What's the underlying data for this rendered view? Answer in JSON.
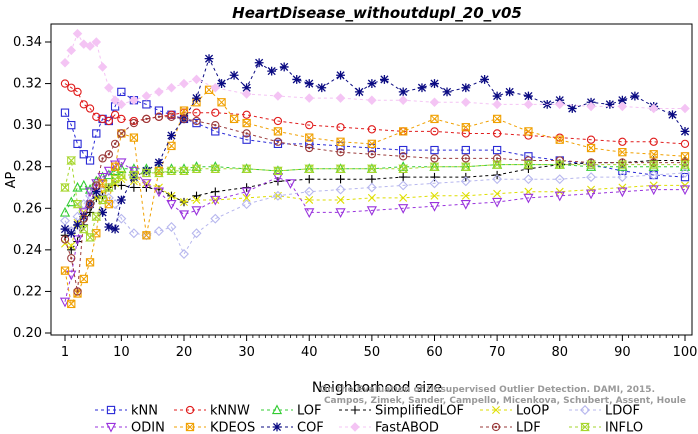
{
  "chart_data": {
    "type": "line",
    "title": "HeartDisease_withoutdupl_20_v05",
    "xlabel": "Neighborhood size",
    "ylabel": "AP",
    "xlim": [
      1,
      100
    ],
    "ylim": [
      0.2,
      0.345
    ],
    "xticks": [
      1,
      10,
      20,
      30,
      40,
      50,
      60,
      70,
      80,
      90,
      100
    ],
    "yticks": [
      0.2,
      0.22,
      0.24,
      0.26,
      0.28,
      0.3,
      0.32,
      0.34
    ],
    "ytick_labels": [
      "0.20",
      "0.22",
      "0.24",
      "0.26",
      "0.28",
      "0.30",
      "0.32",
      "0.34"
    ],
    "grid": false,
    "legend_position": "bottom",
    "credit_lines": [
      "Campos, Zimek, Sander, Campello, Micenkova, Schubert, Assent, Houle",
      "On the Evaluation of Unsupervised Outlier Detection. DAMI, 2015."
    ],
    "series": [
      {
        "name": "kNN",
        "color": "#2a2ad6",
        "marker": "square",
        "dashed": true,
        "x": [
          1,
          2,
          3,
          4,
          5,
          6,
          7,
          8,
          9,
          10,
          12,
          14,
          16,
          18,
          20,
          22,
          25,
          30,
          35,
          40,
          45,
          50,
          55,
          60,
          65,
          70,
          75,
          80,
          85,
          90,
          95,
          100
        ],
        "y": [
          0.306,
          0.3,
          0.291,
          0.286,
          0.283,
          0.296,
          0.303,
          0.302,
          0.309,
          0.316,
          0.312,
          0.31,
          0.307,
          0.305,
          0.303,
          0.301,
          0.297,
          0.293,
          0.291,
          0.291,
          0.29,
          0.289,
          0.288,
          0.288,
          0.288,
          0.288,
          0.285,
          0.283,
          0.281,
          0.278,
          0.276,
          0.275
        ]
      },
      {
        "name": "kNNW",
        "color": "#e01c1c",
        "marker": "circle",
        "dashed": true,
        "x": [
          1,
          2,
          3,
          4,
          5,
          6,
          7,
          8,
          9,
          10,
          12,
          14,
          16,
          18,
          20,
          22,
          25,
          30,
          35,
          40,
          45,
          50,
          55,
          60,
          65,
          70,
          75,
          80,
          85,
          90,
          95,
          100
        ],
        "y": [
          0.32,
          0.318,
          0.316,
          0.31,
          0.308,
          0.304,
          0.303,
          0.302,
          0.305,
          0.303,
          0.302,
          0.303,
          0.304,
          0.305,
          0.306,
          0.306,
          0.306,
          0.305,
          0.302,
          0.3,
          0.299,
          0.298,
          0.297,
          0.297,
          0.296,
          0.296,
          0.295,
          0.294,
          0.293,
          0.292,
          0.292,
          0.291
        ]
      },
      {
        "name": "LOF",
        "color": "#33cc33",
        "marker": "triangle-up",
        "dashed": true,
        "x": [
          1,
          2,
          3,
          4,
          5,
          6,
          7,
          8,
          9,
          10,
          12,
          14,
          16,
          18,
          20,
          22,
          25,
          30,
          35,
          40,
          45,
          50,
          55,
          60,
          65,
          70,
          75,
          80,
          85,
          90,
          95,
          100
        ],
        "y": [
          0.258,
          0.263,
          0.27,
          0.271,
          0.269,
          0.273,
          0.275,
          0.276,
          0.278,
          0.279,
          0.279,
          0.279,
          0.279,
          0.279,
          0.279,
          0.28,
          0.28,
          0.279,
          0.278,
          0.279,
          0.279,
          0.279,
          0.28,
          0.28,
          0.28,
          0.281,
          0.281,
          0.281,
          0.28,
          0.28,
          0.28,
          0.28
        ]
      },
      {
        "name": "SimplifiedLOF",
        "color": "#000000",
        "marker": "plus",
        "dashed": true,
        "x": [
          1,
          2,
          3,
          4,
          5,
          6,
          7,
          8,
          9,
          10,
          12,
          14,
          16,
          18,
          20,
          22,
          25,
          30,
          35,
          40,
          45,
          50,
          55,
          60,
          65,
          70,
          75,
          80,
          85,
          90,
          95,
          100
        ],
        "y": [
          0.247,
          0.24,
          0.244,
          0.252,
          0.258,
          0.265,
          0.266,
          0.27,
          0.271,
          0.271,
          0.27,
          0.27,
          0.269,
          0.266,
          0.263,
          0.266,
          0.268,
          0.27,
          0.273,
          0.274,
          0.274,
          0.274,
          0.275,
          0.275,
          0.275,
          0.276,
          0.279,
          0.281,
          0.282,
          0.282,
          0.283,
          0.283
        ]
      },
      {
        "name": "LoOP",
        "color": "#dede00",
        "marker": "x",
        "dashed": true,
        "x": [
          1,
          2,
          3,
          4,
          5,
          6,
          7,
          8,
          9,
          10,
          12,
          14,
          16,
          18,
          20,
          22,
          25,
          30,
          35,
          40,
          45,
          50,
          55,
          60,
          65,
          70,
          75,
          80,
          85,
          90,
          95,
          100
        ],
        "y": [
          0.243,
          0.242,
          0.253,
          0.258,
          0.262,
          0.265,
          0.268,
          0.27,
          0.272,
          0.274,
          0.273,
          0.272,
          0.27,
          0.266,
          0.263,
          0.264,
          0.264,
          0.265,
          0.266,
          0.264,
          0.264,
          0.265,
          0.265,
          0.266,
          0.266,
          0.267,
          0.268,
          0.268,
          0.269,
          0.27,
          0.271,
          0.271
        ]
      },
      {
        "name": "LDOF",
        "color": "#b7b7ee",
        "marker": "diamond",
        "dashed": true,
        "x": [
          1,
          2,
          3,
          4,
          5,
          6,
          7,
          8,
          9,
          10,
          12,
          14,
          16,
          18,
          20,
          22,
          25,
          30,
          35,
          40,
          45,
          50,
          55,
          60,
          65,
          70,
          75,
          80,
          85,
          90,
          95,
          100
        ],
        "y": [
          0.254,
          0.249,
          0.256,
          0.262,
          0.266,
          0.27,
          0.268,
          0.265,
          0.262,
          0.255,
          0.248,
          0.247,
          0.249,
          0.251,
          0.238,
          0.248,
          0.255,
          0.262,
          0.266,
          0.268,
          0.269,
          0.27,
          0.271,
          0.272,
          0.273,
          0.274,
          0.274,
          0.274,
          0.275,
          0.275,
          0.276,
          0.277
        ]
      },
      {
        "name": "ODIN",
        "color": "#9933dd",
        "marker": "triangle-down",
        "dashed": true,
        "x": [
          1,
          2,
          3,
          4,
          5,
          6,
          7,
          8,
          9,
          10,
          12,
          14,
          16,
          18,
          20,
          22,
          25,
          30,
          35,
          37,
          40,
          45,
          50,
          55,
          60,
          65,
          70,
          75,
          80,
          85,
          90,
          95,
          100
        ],
        "y": [
          0.215,
          0.228,
          0.245,
          0.258,
          0.268,
          0.272,
          0.275,
          0.278,
          0.281,
          0.282,
          0.278,
          0.272,
          0.268,
          0.262,
          0.257,
          0.259,
          0.264,
          0.268,
          0.275,
          0.272,
          0.258,
          0.258,
          0.259,
          0.26,
          0.261,
          0.262,
          0.263,
          0.265,
          0.266,
          0.267,
          0.268,
          0.269,
          0.269
        ]
      },
      {
        "name": "KDEOS",
        "color": "#f0a000",
        "marker": "square-x",
        "dashed": true,
        "x": [
          1,
          2,
          3,
          4,
          5,
          6,
          7,
          8,
          9,
          10,
          12,
          14,
          16,
          18,
          20,
          22,
          24,
          26,
          28,
          30,
          35,
          40,
          45,
          50,
          55,
          60,
          65,
          70,
          75,
          80,
          85,
          90,
          95,
          100
        ],
        "y": [
          0.23,
          0.214,
          0.219,
          0.226,
          0.234,
          0.248,
          0.272,
          0.262,
          0.28,
          0.296,
          0.294,
          0.247,
          0.278,
          0.29,
          0.307,
          0.311,
          0.317,
          0.311,
          0.303,
          0.301,
          0.297,
          0.294,
          0.292,
          0.291,
          0.297,
          0.303,
          0.299,
          0.303,
          0.297,
          0.293,
          0.289,
          0.287,
          0.286,
          0.285
        ]
      },
      {
        "name": "COF",
        "color": "#0a0a82",
        "marker": "asterisk",
        "dashed": true,
        "x": [
          1,
          2,
          3,
          4,
          5,
          6,
          7,
          8,
          9,
          10,
          12,
          14,
          16,
          18,
          20,
          22,
          24,
          26,
          28,
          30,
          32,
          34,
          36,
          38,
          40,
          42,
          45,
          48,
          50,
          52,
          55,
          58,
          60,
          62,
          65,
          68,
          70,
          72,
          75,
          78,
          80,
          82,
          85,
          88,
          90,
          92,
          95,
          98,
          100
        ],
        "y": [
          0.25,
          0.248,
          0.252,
          0.256,
          0.262,
          0.268,
          0.258,
          0.251,
          0.25,
          0.264,
          0.275,
          0.278,
          0.282,
          0.295,
          0.303,
          0.313,
          0.332,
          0.32,
          0.324,
          0.318,
          0.33,
          0.326,
          0.328,
          0.322,
          0.32,
          0.318,
          0.324,
          0.316,
          0.32,
          0.322,
          0.316,
          0.318,
          0.32,
          0.316,
          0.318,
          0.322,
          0.314,
          0.316,
          0.314,
          0.31,
          0.312,
          0.308,
          0.311,
          0.31,
          0.312,
          0.314,
          0.309,
          0.305,
          0.297
        ]
      },
      {
        "name": "FastABOD",
        "color": "#f4c4f4",
        "marker": "diamond-filled",
        "dashed": true,
        "x": [
          1,
          2,
          3,
          4,
          5,
          6,
          7,
          8,
          9,
          10,
          12,
          14,
          16,
          18,
          20,
          22,
          25,
          30,
          35,
          40,
          45,
          50,
          55,
          60,
          65,
          70,
          75,
          80,
          85,
          90,
          95,
          100
        ],
        "y": [
          0.33,
          0.336,
          0.344,
          0.339,
          0.338,
          0.34,
          0.328,
          0.318,
          0.312,
          0.31,
          0.312,
          0.314,
          0.316,
          0.318,
          0.32,
          0.322,
          0.318,
          0.315,
          0.314,
          0.313,
          0.313,
          0.312,
          0.312,
          0.311,
          0.311,
          0.31,
          0.31,
          0.31,
          0.309,
          0.309,
          0.308,
          0.308
        ]
      },
      {
        "name": "LDF",
        "color": "#9a3a3a",
        "marker": "circle-dot",
        "dashed": true,
        "x": [
          1,
          2,
          3,
          4,
          5,
          6,
          7,
          8,
          9,
          10,
          12,
          14,
          16,
          18,
          20,
          22,
          25,
          30,
          35,
          40,
          45,
          50,
          55,
          60,
          65,
          70,
          75,
          80,
          85,
          90,
          95,
          100
        ],
        "y": [
          0.245,
          0.236,
          0.22,
          0.255,
          0.262,
          0.271,
          0.284,
          0.286,
          0.291,
          0.296,
          0.301,
          0.303,
          0.304,
          0.304,
          0.303,
          0.302,
          0.3,
          0.296,
          0.292,
          0.289,
          0.287,
          0.286,
          0.285,
          0.284,
          0.284,
          0.284,
          0.283,
          0.283,
          0.282,
          0.282,
          0.282,
          0.282
        ]
      },
      {
        "name": "INFLO",
        "color": "#a6d62c",
        "marker": "hourglass",
        "dashed": true,
        "x": [
          1,
          2,
          3,
          4,
          5,
          6,
          7,
          8,
          9,
          10,
          12,
          14,
          16,
          18,
          20,
          22,
          25,
          30,
          35,
          40,
          45,
          50,
          55,
          60,
          65,
          70,
          75,
          80,
          85,
          90,
          95,
          100
        ],
        "y": [
          0.27,
          0.283,
          0.262,
          0.25,
          0.246,
          0.256,
          0.264,
          0.27,
          0.274,
          0.276,
          0.276,
          0.277,
          0.277,
          0.278,
          0.278,
          0.279,
          0.279,
          0.279,
          0.278,
          0.279,
          0.279,
          0.279,
          0.279,
          0.28,
          0.28,
          0.281,
          0.281,
          0.281,
          0.281,
          0.281,
          0.281,
          0.281
        ]
      }
    ]
  }
}
